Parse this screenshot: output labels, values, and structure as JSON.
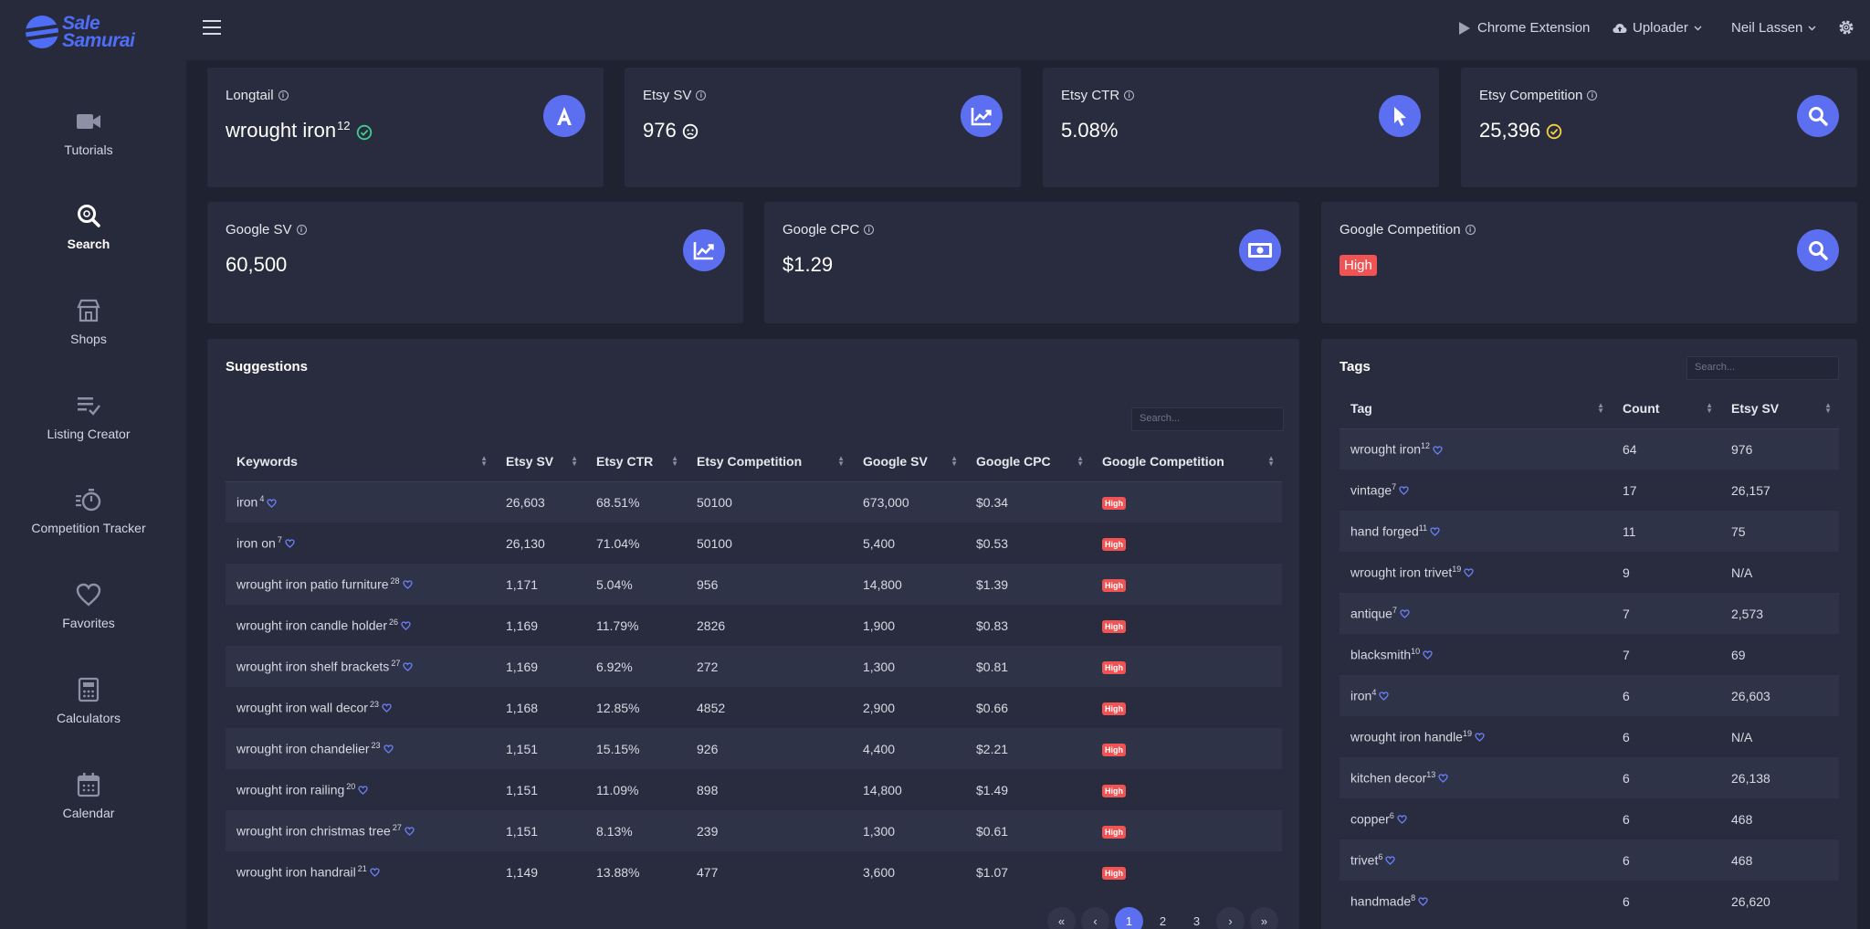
{
  "brand": {
    "line1": "Sale",
    "line2": "Samurai"
  },
  "nav": [
    {
      "label": "Tutorials",
      "icon": "video-icon"
    },
    {
      "label": "Search",
      "icon": "search-icon",
      "active": true
    },
    {
      "label": "Shops",
      "icon": "store-icon"
    },
    {
      "label": "Listing Creator",
      "icon": "list-edit-icon"
    },
    {
      "label": "Competition Tracker",
      "icon": "timer-icon"
    },
    {
      "label": "Favorites",
      "icon": "heart-icon"
    },
    {
      "label": "Calculators",
      "icon": "calculator-icon"
    },
    {
      "label": "Calendar",
      "icon": "calendar-icon"
    }
  ],
  "topbar": {
    "chrome_extension": "Chrome Extension",
    "uploader": "Uploader",
    "user": "Neil Lassen"
  },
  "stats": {
    "longtail": {
      "label": "Longtail",
      "value": "wrought iron",
      "sup": "12"
    },
    "etsy_sv": {
      "label": "Etsy SV",
      "value": "976"
    },
    "etsy_ctr": {
      "label": "Etsy CTR",
      "value": "5.08%"
    },
    "etsy_competition": {
      "label": "Etsy Competition",
      "value": "25,396"
    },
    "google_sv": {
      "label": "Google SV",
      "value": "60,500"
    },
    "google_cpc": {
      "label": "Google CPC",
      "value": "$1.29"
    },
    "google_competition": {
      "label": "Google Competition",
      "value": "High"
    }
  },
  "colors": {
    "accent": "#5b6ff0",
    "success": "#3ecf8e",
    "warning": "#f5d142",
    "danger": "#ef5353"
  },
  "suggestions": {
    "title": "Suggestions",
    "search_placeholder": "Search...",
    "columns": [
      "Keywords",
      "Etsy SV",
      "Etsy CTR",
      "Etsy Competition",
      "Google SV",
      "Google CPC",
      "Google Competition"
    ],
    "rows": [
      {
        "keyword": "iron",
        "sup": "4",
        "etsy_sv": "26,603",
        "etsy_ctr": "68.51%",
        "etsy_comp": "50100",
        "google_sv": "673,000",
        "google_cpc": "$0.34",
        "google_comp": "High"
      },
      {
        "keyword": "iron on",
        "sup": "7",
        "etsy_sv": "26,130",
        "etsy_ctr": "71.04%",
        "etsy_comp": "50100",
        "google_sv": "5,400",
        "google_cpc": "$0.53",
        "google_comp": "High"
      },
      {
        "keyword": "wrought iron patio furniture",
        "sup": "28",
        "etsy_sv": "1,171",
        "etsy_ctr": "5.04%",
        "etsy_comp": "956",
        "google_sv": "14,800",
        "google_cpc": "$1.39",
        "google_comp": "High"
      },
      {
        "keyword": "wrought iron candle holder",
        "sup": "26",
        "etsy_sv": "1,169",
        "etsy_ctr": "11.79%",
        "etsy_comp": "2826",
        "google_sv": "1,900",
        "google_cpc": "$0.83",
        "google_comp": "High"
      },
      {
        "keyword": "wrought iron shelf brackets",
        "sup": "27",
        "etsy_sv": "1,169",
        "etsy_ctr": "6.92%",
        "etsy_comp": "272",
        "google_sv": "1,300",
        "google_cpc": "$0.81",
        "google_comp": "High"
      },
      {
        "keyword": "wrought iron wall decor",
        "sup": "23",
        "etsy_sv": "1,168",
        "etsy_ctr": "12.85%",
        "etsy_comp": "4852",
        "google_sv": "2,900",
        "google_cpc": "$0.66",
        "google_comp": "High"
      },
      {
        "keyword": "wrought iron chandelier",
        "sup": "23",
        "etsy_sv": "1,151",
        "etsy_ctr": "15.15%",
        "etsy_comp": "926",
        "google_sv": "4,400",
        "google_cpc": "$2.21",
        "google_comp": "High"
      },
      {
        "keyword": "wrought iron railing",
        "sup": "20",
        "etsy_sv": "1,151",
        "etsy_ctr": "11.09%",
        "etsy_comp": "898",
        "google_sv": "14,800",
        "google_cpc": "$1.49",
        "google_comp": "High"
      },
      {
        "keyword": "wrought iron christmas tree",
        "sup": "27",
        "etsy_sv": "1,151",
        "etsy_ctr": "8.13%",
        "etsy_comp": "239",
        "google_sv": "1,300",
        "google_cpc": "$0.61",
        "google_comp": "High"
      },
      {
        "keyword": "wrought iron handrail",
        "sup": "21",
        "etsy_sv": "1,149",
        "etsy_ctr": "13.88%",
        "etsy_comp": "477",
        "google_sv": "3,600",
        "google_cpc": "$1.07",
        "google_comp": "High"
      }
    ],
    "pagination": [
      "«",
      "‹",
      "1",
      "2",
      "3",
      "›",
      "»"
    ]
  },
  "tags": {
    "title": "Tags",
    "search_placeholder": "Search...",
    "columns": [
      "Tag",
      "Count",
      "Etsy SV"
    ],
    "rows": [
      {
        "tag": "wrought iron",
        "sup": "12",
        "count": "64",
        "etsy_sv": "976"
      },
      {
        "tag": "vintage",
        "sup": "7",
        "count": "17",
        "etsy_sv": "26,157"
      },
      {
        "tag": "hand forged",
        "sup": "11",
        "count": "11",
        "etsy_sv": "75"
      },
      {
        "tag": "wrought iron trivet",
        "sup": "19",
        "count": "9",
        "etsy_sv": "N/A"
      },
      {
        "tag": "antique",
        "sup": "7",
        "count": "7",
        "etsy_sv": "2,573"
      },
      {
        "tag": "blacksmith",
        "sup": "10",
        "count": "7",
        "etsy_sv": "69"
      },
      {
        "tag": "iron",
        "sup": "4",
        "count": "6",
        "etsy_sv": "26,603"
      },
      {
        "tag": "wrought iron handle",
        "sup": "19",
        "count": "6",
        "etsy_sv": "N/A"
      },
      {
        "tag": "kitchen decor",
        "sup": "13",
        "count": "6",
        "etsy_sv": "26,138"
      },
      {
        "tag": "copper",
        "sup": "6",
        "count": "6",
        "etsy_sv": "468"
      },
      {
        "tag": "trivet",
        "sup": "6",
        "count": "6",
        "etsy_sv": "468"
      },
      {
        "tag": "handmade",
        "sup": "8",
        "count": "6",
        "etsy_sv": "26,620"
      }
    ]
  }
}
